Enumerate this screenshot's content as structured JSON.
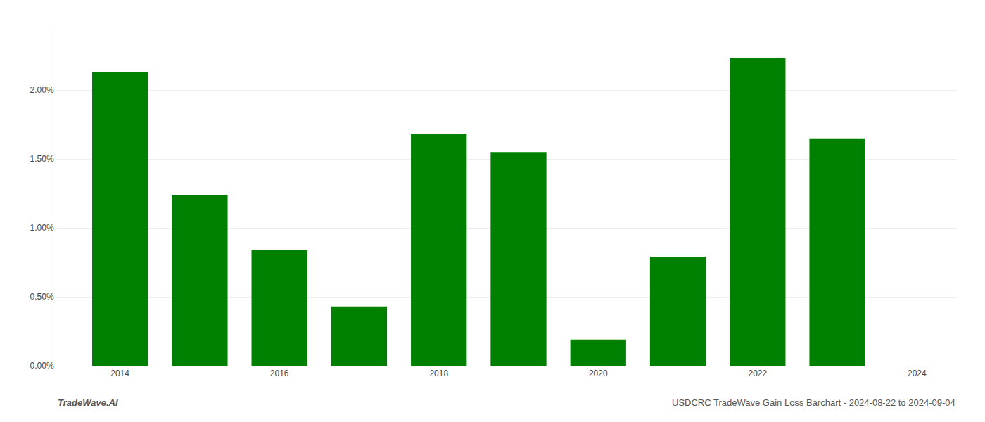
{
  "chart_data": {
    "type": "bar",
    "x": [
      2014,
      2015,
      2016,
      2017,
      2018,
      2019,
      2020,
      2021,
      2022,
      2023
    ],
    "values": [
      0.0213,
      0.0124,
      0.0084,
      0.0043,
      0.0168,
      0.0155,
      0.0019,
      0.0079,
      0.0223,
      0.0165
    ],
    "color": "#008000",
    "xlim": [
      2013.2,
      2024.5
    ],
    "xticks": [
      2014,
      2016,
      2018,
      2020,
      2022,
      2024
    ],
    "ylim": [
      0.0,
      0.0245
    ],
    "yticks": [
      {
        "value": 0.0,
        "label": "0.00%"
      },
      {
        "value": 0.005,
        "label": "0.50%"
      },
      {
        "value": 0.01,
        "label": "1.00%"
      },
      {
        "value": 0.015,
        "label": "1.50%"
      },
      {
        "value": 0.02,
        "label": "2.00%"
      }
    ],
    "grid": true,
    "annotations": [
      "TradeWave.AI",
      "USDCRC TradeWave Gain Loss Barchart - 2024-08-22 to 2024-09-04"
    ]
  }
}
